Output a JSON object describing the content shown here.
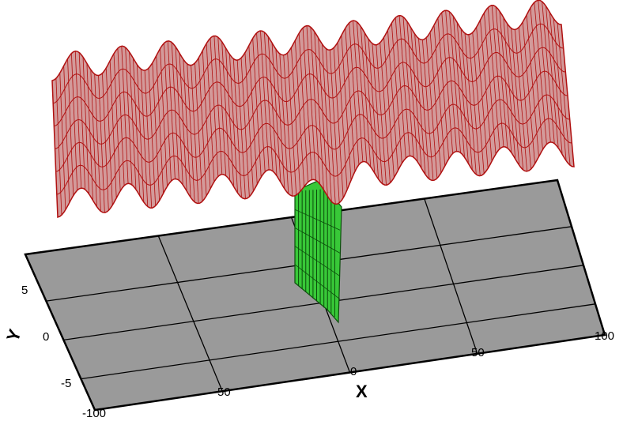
{
  "colors": {
    "background": "#ffffff",
    "plane_fill": "#9a9a9a",
    "plane_edge": "#000000",
    "surface_fill": "#d39a9a",
    "surface_mesh": "#b01010",
    "inset_fill": "#38c838",
    "inset_mesh": "#0b4d0b"
  },
  "axes": {
    "x_title": "X",
    "y_title": "Y",
    "x_ticks": [
      "-100",
      "-50",
      "0",
      "50",
      "100"
    ],
    "y_ticks": [
      "-5",
      "0",
      "5"
    ]
  }
}
